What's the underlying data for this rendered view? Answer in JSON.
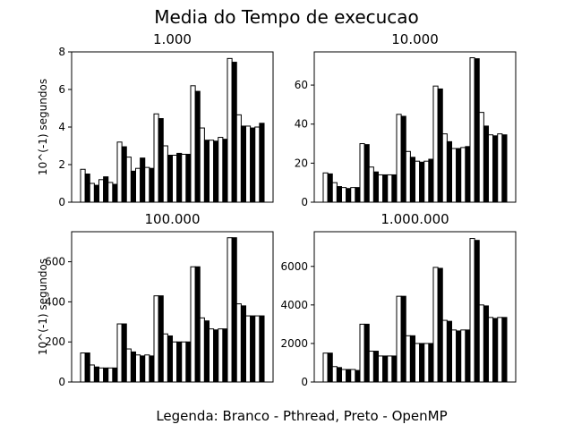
{
  "figure": {
    "title": "Media do Tempo de execucao",
    "legend_text": "Legenda: Branco - Pthread, Preto - OpenMP"
  },
  "colors": {
    "pthread": "#ffffff",
    "openmp": "#000000",
    "edge": "#000000"
  },
  "chart_data": [
    {
      "type": "bar",
      "title": "1.000",
      "ylabel": "10^(-1) segundos",
      "ylim": [
        0,
        8
      ],
      "yticks": [
        0,
        2,
        4,
        6,
        8
      ],
      "series": [
        {
          "name": "Pthread",
          "values": [
            1.75,
            1.0,
            1.2,
            1.05,
            3.2,
            2.4,
            1.8,
            1.85,
            4.7,
            3.0,
            2.5,
            2.55,
            6.2,
            3.95,
            3.3,
            3.45,
            7.65,
            4.65,
            4.05,
            4.0
          ]
        },
        {
          "name": "OpenMP",
          "values": [
            1.5,
            0.9,
            1.35,
            0.95,
            2.95,
            1.65,
            2.35,
            1.8,
            4.45,
            2.5,
            2.6,
            2.55,
            5.9,
            3.3,
            3.25,
            3.35,
            7.45,
            4.05,
            3.95,
            4.2
          ]
        }
      ]
    },
    {
      "type": "bar",
      "title": "10.000",
      "ylabel": "",
      "ylim": [
        0,
        77
      ],
      "yticks": [
        0,
        20,
        40,
        60
      ],
      "series": [
        {
          "name": "Pthread",
          "values": [
            15,
            10,
            7.5,
            7.5,
            30,
            18,
            14,
            14,
            45,
            26,
            21,
            21,
            59.5,
            35,
            27.5,
            28,
            74,
            46,
            34.5,
            35
          ]
        },
        {
          "name": "OpenMP",
          "values": [
            14.5,
            8,
            7,
            7.5,
            29.5,
            15.5,
            14,
            14,
            44,
            23,
            20.5,
            22,
            58,
            31,
            27.5,
            28.5,
            73.5,
            39,
            34,
            34.5
          ]
        }
      ]
    },
    {
      "type": "bar",
      "title": "100.000",
      "ylabel": "10^(-1) segundos",
      "ylim": [
        0,
        750
      ],
      "yticks": [
        0,
        200,
        400,
        600
      ],
      "series": [
        {
          "name": "Pthread",
          "values": [
            145,
            85,
            70,
            70,
            290,
            165,
            135,
            135,
            430,
            240,
            200,
            200,
            575,
            320,
            265,
            265,
            720,
            390,
            330,
            330
          ]
        },
        {
          "name": "OpenMP",
          "values": [
            145,
            75,
            70,
            70,
            290,
            150,
            130,
            130,
            430,
            230,
            200,
            200,
            575,
            305,
            260,
            265,
            720,
            380,
            330,
            330
          ]
        }
      ]
    },
    {
      "type": "bar",
      "title": "1.000.000",
      "ylabel": "",
      "ylim": [
        0,
        7800
      ],
      "yticks": [
        0,
        2000,
        4000,
        6000
      ],
      "series": [
        {
          "name": "Pthread",
          "values": [
            1500,
            800,
            650,
            650,
            3000,
            1600,
            1350,
            1350,
            4450,
            2400,
            2000,
            2000,
            5950,
            3200,
            2700,
            2700,
            7450,
            4000,
            3350,
            3350
          ]
        },
        {
          "name": "OpenMP",
          "values": [
            1500,
            750,
            650,
            600,
            3000,
            1600,
            1350,
            1350,
            4450,
            2400,
            2000,
            2000,
            5900,
            3150,
            2650,
            2700,
            7350,
            3950,
            3300,
            3350
          ]
        }
      ]
    }
  ]
}
